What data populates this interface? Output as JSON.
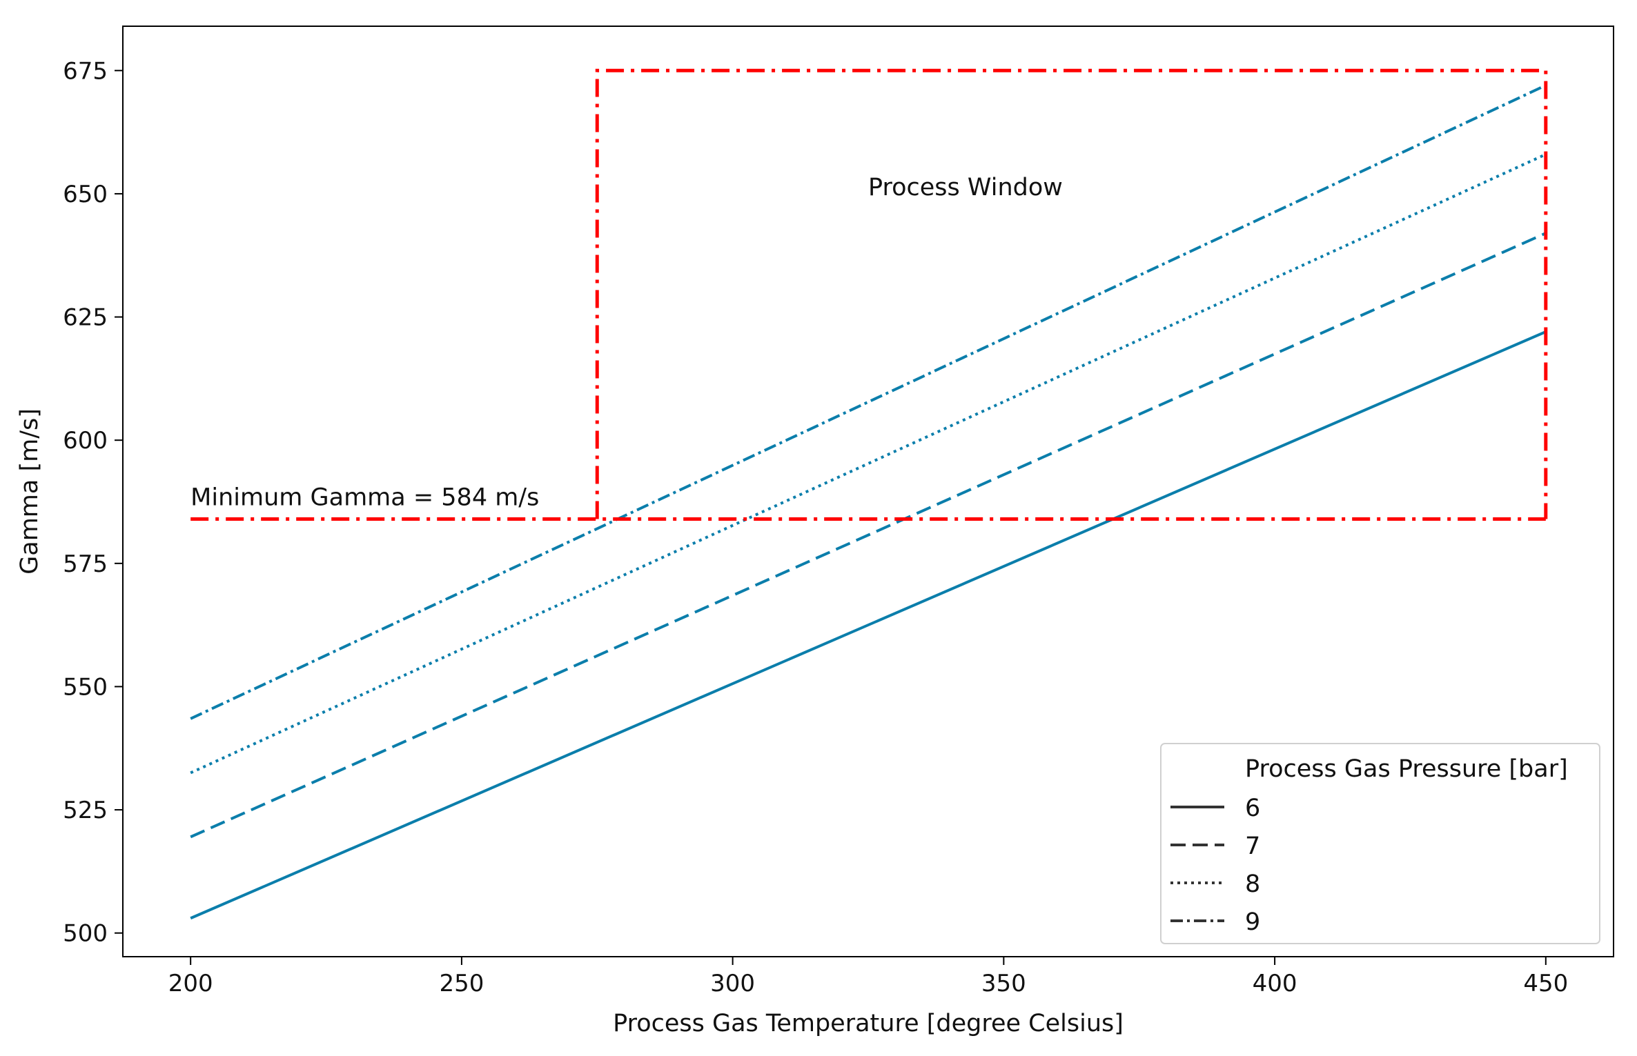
{
  "chart_data": {
    "type": "line",
    "title": "",
    "xlabel": "Process Gas Temperature [degree Celsius]",
    "ylabel": "Gamma [m/s]",
    "xlim": [
      187.5,
      462.5
    ],
    "ylim": [
      495.2,
      684
    ],
    "x_ticks": [
      200,
      250,
      300,
      350,
      400,
      450
    ],
    "y_ticks": [
      500,
      525,
      550,
      575,
      600,
      625,
      650,
      675
    ],
    "grid": false,
    "line_color": "#0b7eab",
    "legend": {
      "title": "Process Gas Pressure [bar]",
      "placement": "lower-right"
    },
    "series": [
      {
        "name": "6",
        "style": "solid",
        "x": [
          200,
          450
        ],
        "y": [
          503,
          622
        ]
      },
      {
        "name": "7",
        "style": "dashed",
        "x": [
          200,
          450
        ],
        "y": [
          519.5,
          642
        ]
      },
      {
        "name": "8",
        "style": "dotted",
        "x": [
          200,
          450
        ],
        "y": [
          532.5,
          658
        ]
      },
      {
        "name": "9",
        "style": "dashdot",
        "x": [
          200,
          450
        ],
        "y": [
          543.5,
          672
        ]
      }
    ],
    "annotations": {
      "min_gamma": {
        "text": "Minimum Gamma = 584 m/s",
        "y": 584,
        "x_start": 200,
        "x_end": 450,
        "color": "#ff0000"
      },
      "process_window": {
        "text": "Process Window",
        "x": [
          275,
          450
        ],
        "y": [
          584,
          675
        ],
        "color": "#ff0000"
      }
    }
  }
}
